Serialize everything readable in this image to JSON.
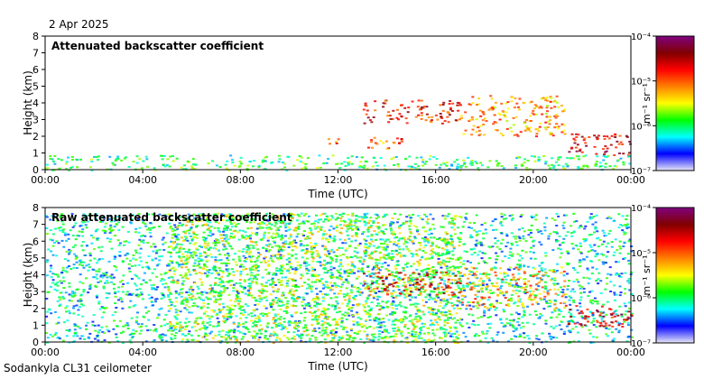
{
  "header": {
    "date": "2 Apr 2025"
  },
  "footer": {
    "site": "Sodankyla CL31 ceilometer"
  },
  "colors": {
    "colormap": [
      "#e8e8f8",
      "#0000ff",
      "#00ffff",
      "#00ff00",
      "#ffff00",
      "#ff8000",
      "#ff0000",
      "#800000",
      "#800080"
    ],
    "frame": "#000000",
    "background": "#ffffff"
  },
  "chart_data": [
    {
      "type": "heatmap",
      "title": "Attenuated backscatter coefficient",
      "xlabel": "Time (UTC)",
      "ylabel": "Height (km)",
      "xticks": [
        "00:00",
        "04:00",
        "08:00",
        "12:00",
        "16:00",
        "20:00",
        "00:00"
      ],
      "xlim_hours": [
        0,
        24
      ],
      "ylim": [
        0,
        8
      ],
      "yticks": [
        "0",
        "1",
        "2",
        "3",
        "4",
        "5",
        "6",
        "7",
        "8"
      ],
      "colorbar": {
        "label": "m⁻¹ sr⁻¹",
        "ticks": [
          "10⁻⁷",
          "10⁻⁶",
          "10⁻⁵",
          "10⁻⁴"
        ],
        "scale": "log",
        "range": [
          1e-07,
          0.0001
        ]
      },
      "features": [
        {
          "desc": "surface layer",
          "t0": 0,
          "t1": 24,
          "h0": 0,
          "h1": 0.9,
          "level": 0.35
        },
        {
          "desc": "cloud",
          "t0": 11.5,
          "t1": 12.2,
          "h0": 1.5,
          "h1": 1.9,
          "level": 0.7
        },
        {
          "desc": "cloud",
          "t0": 13.1,
          "t1": 14.8,
          "h0": 1.3,
          "h1": 2.0,
          "level": 0.65
        },
        {
          "desc": "cloud",
          "t0": 13.0,
          "t1": 17.0,
          "h0": 2.8,
          "h1": 4.2,
          "level": 0.75
        },
        {
          "desc": "cloud",
          "t0": 17.0,
          "t1": 21.3,
          "h0": 2.0,
          "h1": 4.5,
          "level": 0.6
        },
        {
          "desc": "cloud",
          "t0": 21.3,
          "t1": 24.0,
          "h0": 0.9,
          "h1": 2.2,
          "level": 0.8
        }
      ]
    },
    {
      "type": "heatmap",
      "title": "Raw attenuated backscatter coefficient",
      "xlabel": "Time (UTC)",
      "ylabel": "Height (km)",
      "xticks": [
        "00:00",
        "04:00",
        "08:00",
        "12:00",
        "16:00",
        "20:00",
        "00:00"
      ],
      "xlim_hours": [
        0,
        24
      ],
      "ylim": [
        0,
        8
      ],
      "yticks": [
        "0",
        "1",
        "2",
        "3",
        "4",
        "5",
        "6",
        "7",
        "8"
      ],
      "colorbar": {
        "label": "m⁻¹ sr⁻¹",
        "ticks": [
          "10⁻⁷",
          "10⁻⁶",
          "10⁻⁵",
          "10⁻⁴"
        ],
        "scale": "log",
        "range": [
          1e-07,
          0.0001
        ]
      },
      "features": [
        {
          "desc": "noise background",
          "t0": 0,
          "t1": 24,
          "h0": 0,
          "h1": 7.7,
          "level": 0.28
        },
        {
          "desc": "solar noise",
          "t0": 5.0,
          "t1": 17.0,
          "h0": 0,
          "h1": 7.7,
          "level": 0.45
        },
        {
          "desc": "cloud",
          "t0": 13.0,
          "t1": 17.0,
          "h0": 2.8,
          "h1": 4.2,
          "level": 0.75
        },
        {
          "desc": "cloud",
          "t0": 17.0,
          "t1": 21.3,
          "h0": 2.0,
          "h1": 4.5,
          "level": 0.6
        },
        {
          "desc": "cloud",
          "t0": 21.3,
          "t1": 24.0,
          "h0": 0.9,
          "h1": 2.2,
          "level": 0.8
        }
      ]
    }
  ]
}
